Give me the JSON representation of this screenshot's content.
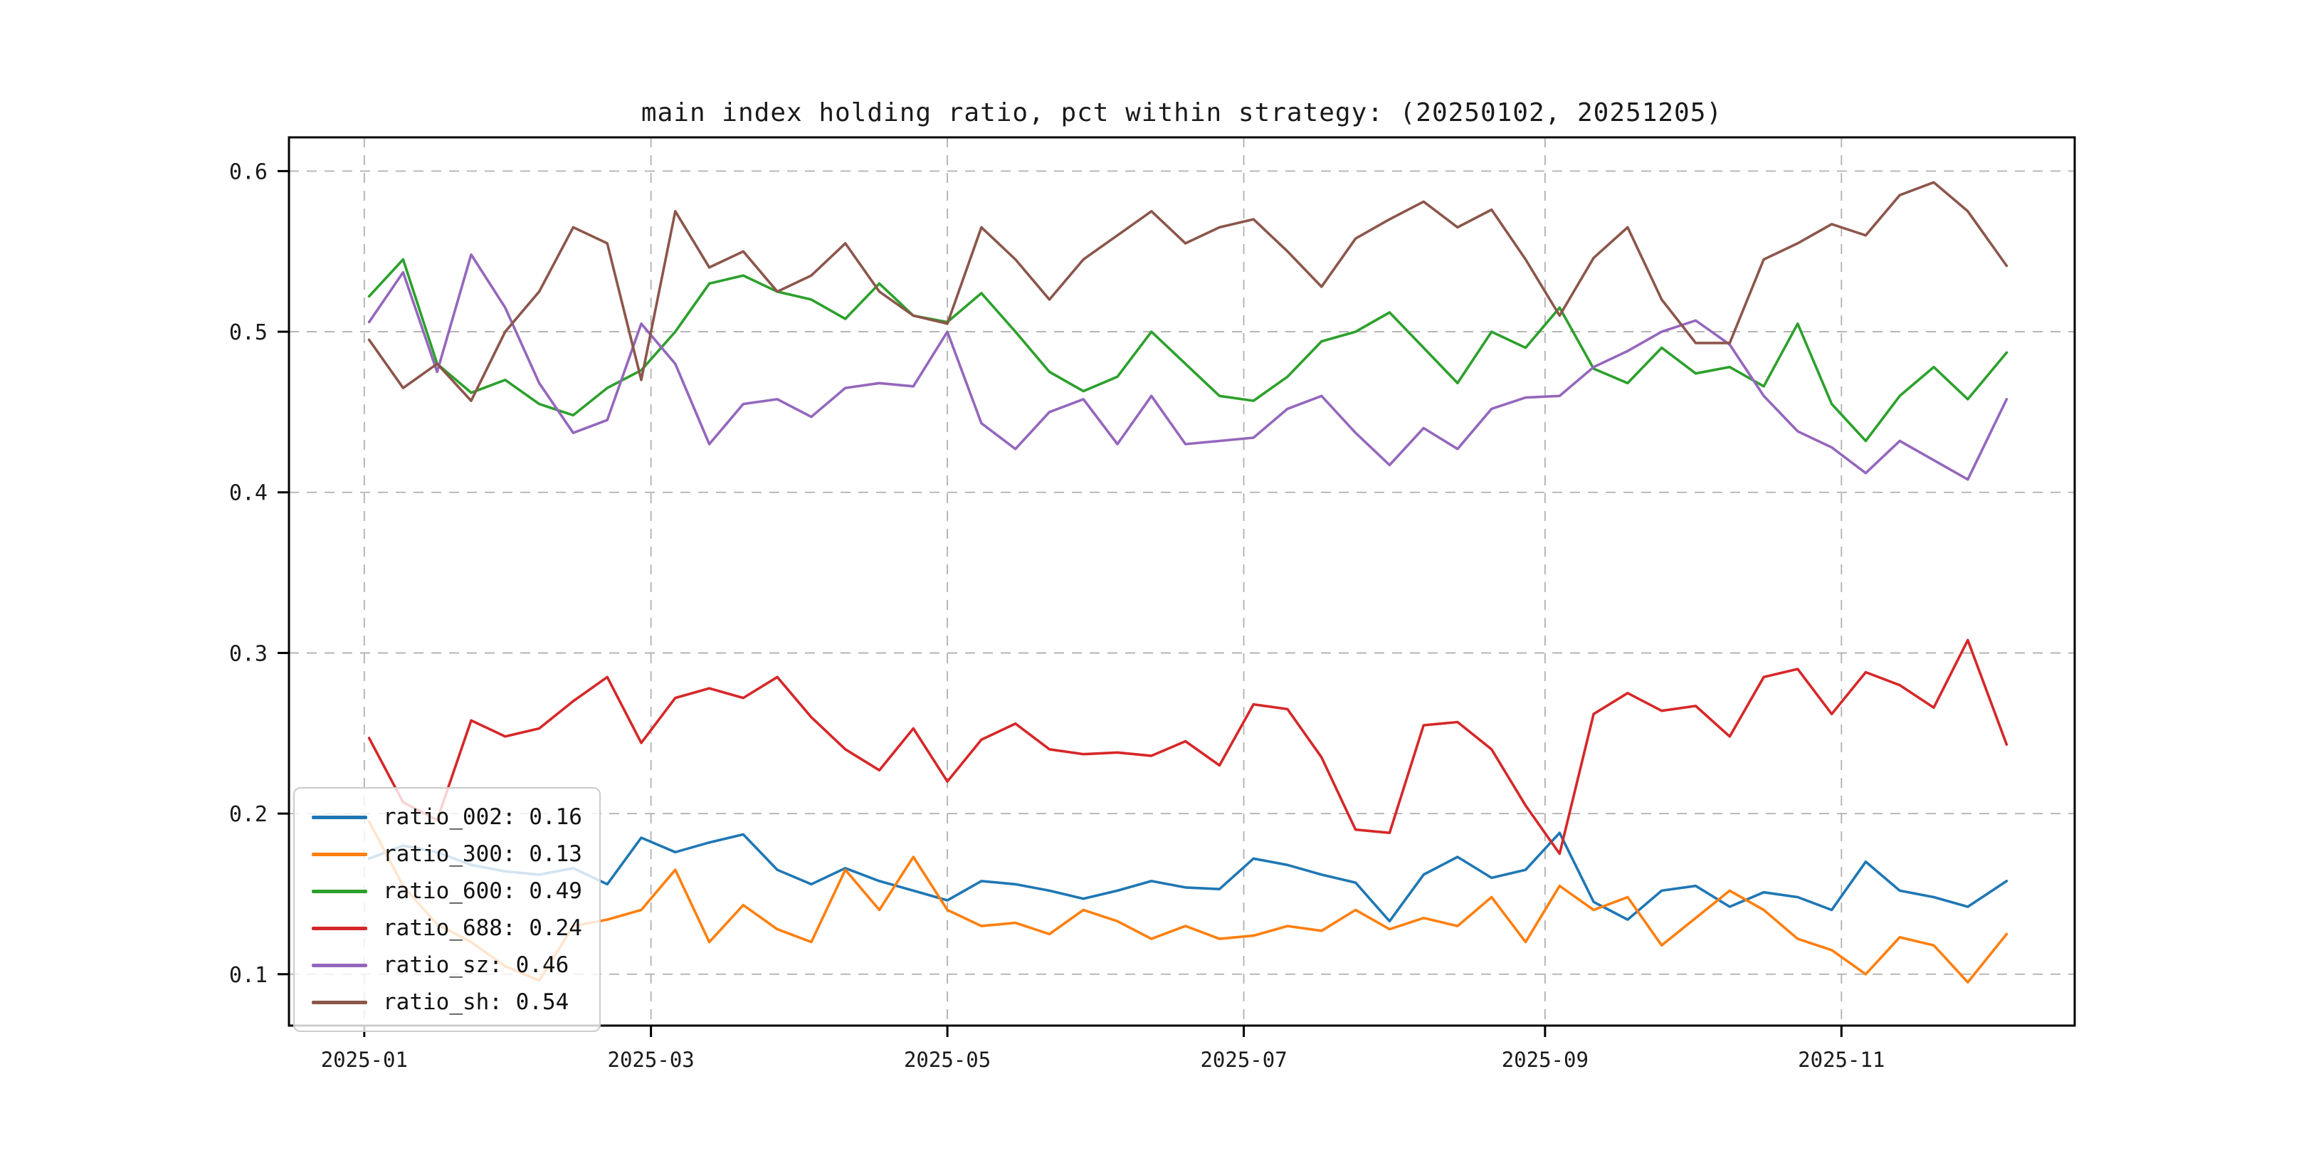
{
  "figure": {
    "title": "main index holding ratio, pct within strategy: (20250102, 20251205)",
    "background_color": "#ffffff",
    "axis_color": "#000000",
    "grid_color": "#b0b0b0",
    "grid_style": "dashed"
  },
  "chart_data": {
    "type": "line",
    "title": "main index holding ratio, pct within strategy: (20250102, 20251205)",
    "xlabel": "",
    "ylabel": "",
    "legend_position": "lower-left",
    "grid": "dashed both axes",
    "date_range": [
      "20250102",
      "20251205"
    ],
    "ylim": [
      0.068,
      0.621
    ],
    "xlim_days": [
      -15.5,
      352
    ],
    "y_ticks": [
      {
        "value": 0.1,
        "label": "0.1"
      },
      {
        "value": 0.2,
        "label": "0.2"
      },
      {
        "value": 0.3,
        "label": "0.3"
      },
      {
        "value": 0.4,
        "label": "0.4"
      },
      {
        "value": 0.5,
        "label": "0.5"
      },
      {
        "value": 0.6,
        "label": "0.6"
      }
    ],
    "x_ticks": [
      {
        "day": 0,
        "label": "2025-01"
      },
      {
        "day": 59,
        "label": "2025-03"
      },
      {
        "day": 120,
        "label": "2025-05"
      },
      {
        "day": 181,
        "label": "2025-07"
      },
      {
        "day": 243,
        "label": "2025-09"
      },
      {
        "day": 304,
        "label": "2025-11"
      }
    ],
    "x_days": [
      1,
      8,
      15,
      22,
      29,
      36,
      43,
      50,
      57,
      64,
      71,
      78,
      85,
      92,
      99,
      106,
      113,
      120,
      127,
      134,
      141,
      148,
      155,
      162,
      169,
      176,
      183,
      190,
      197,
      204,
      211,
      218,
      225,
      232,
      239,
      246,
      253,
      260,
      267,
      274,
      281,
      288,
      295,
      302,
      309,
      316,
      323,
      330,
      338
    ],
    "x_dates": [
      "2025-01-02",
      "2025-01-09",
      "2025-01-16",
      "2025-01-23",
      "2025-01-30",
      "2025-02-06",
      "2025-02-13",
      "2025-02-20",
      "2025-02-27",
      "2025-03-06",
      "2025-03-13",
      "2025-03-20",
      "2025-03-27",
      "2025-04-03",
      "2025-04-10",
      "2025-04-17",
      "2025-04-24",
      "2025-05-01",
      "2025-05-08",
      "2025-05-15",
      "2025-05-22",
      "2025-05-29",
      "2025-06-05",
      "2025-06-12",
      "2025-06-19",
      "2025-06-26",
      "2025-07-03",
      "2025-07-10",
      "2025-07-17",
      "2025-07-24",
      "2025-07-31",
      "2025-08-07",
      "2025-08-14",
      "2025-08-21",
      "2025-08-28",
      "2025-09-04",
      "2025-09-11",
      "2025-09-18",
      "2025-09-25",
      "2025-10-02",
      "2025-10-09",
      "2025-10-16",
      "2025-10-23",
      "2025-10-30",
      "2025-11-06",
      "2025-11-13",
      "2025-11-20",
      "2025-11-27",
      "2025-12-05"
    ],
    "series": [
      {
        "name": "ratio_002",
        "color": "#1f77b4",
        "legend_label": "ratio_002: 0.16",
        "last_value": 0.16,
        "values": [
          0.172,
          0.18,
          0.176,
          0.168,
          0.164,
          0.162,
          0.166,
          0.156,
          0.185,
          0.176,
          0.182,
          0.187,
          0.165,
          0.156,
          0.166,
          0.158,
          0.152,
          0.146,
          0.158,
          0.156,
          0.152,
          0.147,
          0.152,
          0.158,
          0.154,
          0.153,
          0.172,
          0.168,
          0.162,
          0.157,
          0.133,
          0.162,
          0.173,
          0.16,
          0.165,
          0.188,
          0.145,
          0.134,
          0.152,
          0.155,
          0.142,
          0.151,
          0.148,
          0.14,
          0.17,
          0.152,
          0.148,
          0.142,
          0.158
        ]
      },
      {
        "name": "ratio_300",
        "color": "#ff7f0e",
        "legend_label": "ratio_300: 0.13",
        "last_value": 0.13,
        "values": [
          0.195,
          0.155,
          0.131,
          0.12,
          0.105,
          0.096,
          0.13,
          0.134,
          0.14,
          0.165,
          0.12,
          0.143,
          0.128,
          0.12,
          0.165,
          0.14,
          0.173,
          0.14,
          0.13,
          0.132,
          0.125,
          0.14,
          0.133,
          0.122,
          0.13,
          0.122,
          0.124,
          0.13,
          0.127,
          0.14,
          0.128,
          0.135,
          0.13,
          0.148,
          0.12,
          0.155,
          0.14,
          0.148,
          0.118,
          0.135,
          0.152,
          0.14,
          0.122,
          0.115,
          0.1,
          0.123,
          0.118,
          0.095,
          0.125
        ]
      },
      {
        "name": "ratio_600",
        "color": "#2ca02c",
        "legend_label": "ratio_600: 0.49",
        "last_value": 0.49,
        "values": [
          0.522,
          0.545,
          0.48,
          0.462,
          0.47,
          0.455,
          0.448,
          0.465,
          0.476,
          0.5,
          0.53,
          0.535,
          0.525,
          0.52,
          0.508,
          0.53,
          0.51,
          0.506,
          0.524,
          0.5,
          0.475,
          0.463,
          0.472,
          0.5,
          0.48,
          0.46,
          0.457,
          0.472,
          0.494,
          0.5,
          0.512,
          0.49,
          0.468,
          0.5,
          0.49,
          0.515,
          0.477,
          0.468,
          0.49,
          0.474,
          0.478,
          0.466,
          0.505,
          0.455,
          0.432,
          0.46,
          0.478,
          0.458,
          0.487
        ]
      },
      {
        "name": "ratio_688",
        "color": "#d62728",
        "legend_label": "ratio_688: 0.24",
        "last_value": 0.24,
        "values": [
          0.247,
          0.207,
          0.196,
          0.258,
          0.248,
          0.253,
          0.27,
          0.285,
          0.244,
          0.272,
          0.278,
          0.272,
          0.285,
          0.26,
          0.24,
          0.227,
          0.253,
          0.22,
          0.246,
          0.256,
          0.24,
          0.237,
          0.238,
          0.236,
          0.245,
          0.23,
          0.268,
          0.265,
          0.235,
          0.19,
          0.188,
          0.255,
          0.257,
          0.24,
          0.205,
          0.175,
          0.262,
          0.275,
          0.264,
          0.267,
          0.248,
          0.285,
          0.29,
          0.262,
          0.288,
          0.28,
          0.266,
          0.308,
          0.243
        ]
      },
      {
        "name": "ratio_sz",
        "color": "#9467bd",
        "legend_label": "ratio_sz: 0.46",
        "last_value": 0.46,
        "values": [
          0.506,
          0.537,
          0.475,
          0.548,
          0.515,
          0.468,
          0.437,
          0.445,
          0.505,
          0.48,
          0.43,
          0.455,
          0.458,
          0.447,
          0.465,
          0.468,
          0.466,
          0.5,
          0.443,
          0.427,
          0.45,
          0.458,
          0.43,
          0.46,
          0.43,
          0.432,
          0.434,
          0.452,
          0.46,
          0.437,
          0.417,
          0.44,
          0.427,
          0.452,
          0.459,
          0.46,
          0.478,
          0.488,
          0.5,
          0.507,
          0.492,
          0.46,
          0.438,
          0.428,
          0.412,
          0.432,
          0.42,
          0.408,
          0.458
        ]
      },
      {
        "name": "ratio_sh",
        "color": "#8c564b",
        "legend_label": "ratio_sh: 0.54",
        "last_value": 0.54,
        "values": [
          0.495,
          0.465,
          0.48,
          0.457,
          0.5,
          0.525,
          0.565,
          0.555,
          0.47,
          0.575,
          0.54,
          0.55,
          0.525,
          0.535,
          0.555,
          0.525,
          0.51,
          0.505,
          0.565,
          0.545,
          0.52,
          0.545,
          0.56,
          0.575,
          0.555,
          0.565,
          0.57,
          0.55,
          0.528,
          0.558,
          0.57,
          0.581,
          0.565,
          0.576,
          0.545,
          0.51,
          0.546,
          0.565,
          0.52,
          0.493,
          0.493,
          0.545,
          0.555,
          0.567,
          0.56,
          0.585,
          0.593,
          0.575,
          0.541
        ]
      }
    ]
  }
}
